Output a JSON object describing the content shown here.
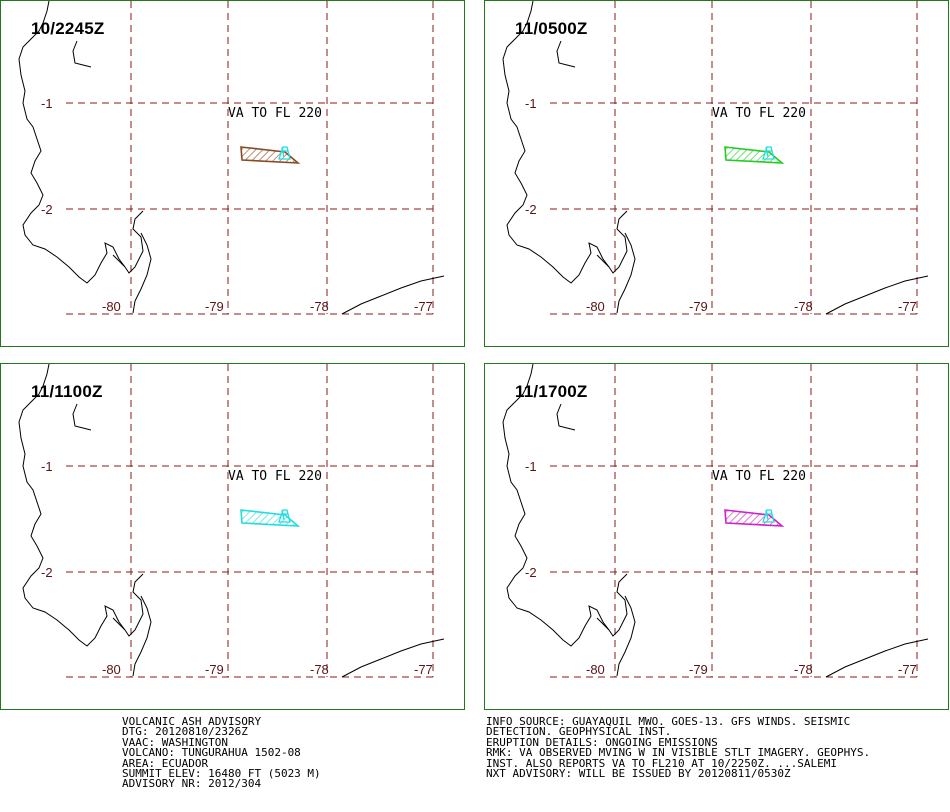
{
  "panels": [
    {
      "title": "10/2245Z",
      "plume_color": "#8a4a22"
    },
    {
      "title": "11/0500Z",
      "plume_color": "#22cc22"
    },
    {
      "title": "11/1100Z",
      "plume_color": "#22dddd"
    },
    {
      "title": "11/1700Z",
      "plume_color": "#cc22cc"
    }
  ],
  "map": {
    "lat_labels": [
      "-1",
      "-2"
    ],
    "lon_labels": [
      "-80",
      "-79",
      "-78",
      "-77"
    ],
    "va_label": "VA TO FL 220",
    "grid_color": "#8b1a1a",
    "coast_color": "#000000",
    "vent_color": "#22dddd"
  },
  "advisory_left": [
    "VOLCANIC ASH ADVISORY",
    "DTG: 20120810/2326Z",
    "VAAC: WASHINGTON",
    "VOLCANO: TUNGURAHUA 1502-08",
    "AREA: ECUADOR",
    "SUMMIT ELEV: 16480 FT (5023 M)",
    "ADVISORY NR: 2012/304"
  ],
  "advisory_right": [
    "INFO SOURCE: GUAYAQUIL MWO. GOES-13. GFS WINDS. SEISMIC",
    "DETECTION. GEOPHYSICAL INST.",
    "ERUPTION DETAILS: ONGOING EMISSIONS",
    "RMK: VA OBSERVED MVING W IN VISIBLE STLT IMAGERY. GEOPHYS.",
    "INST. ALSO REPORTS VA TO FL210 AT 10/2250Z. ...SALEMI",
    "NXT ADVISORY: WILL BE ISSUED BY 20120811/0530Z"
  ]
}
